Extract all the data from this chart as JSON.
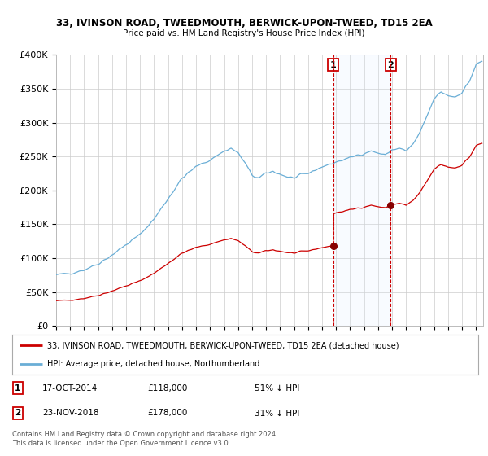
{
  "title1": "33, IVINSON ROAD, TWEEDMOUTH, BERWICK-UPON-TWEED, TD15 2EA",
  "title2": "Price paid vs. HM Land Registry's House Price Index (HPI)",
  "ylabel_ticks": [
    "£0",
    "£50K",
    "£100K",
    "£150K",
    "£200K",
    "£250K",
    "£300K",
    "£350K",
    "£400K"
  ],
  "ylim": [
    0,
    400000
  ],
  "xlim_start": 1995.0,
  "xlim_end": 2025.5,
  "legend_line1": "33, IVINSON ROAD, TWEEDMOUTH, BERWICK-UPON-TWEED, TD15 2EA (detached house)",
  "legend_line2": "HPI: Average price, detached house, Northumberland",
  "annotation1_label": "1",
  "annotation1_date": "17-OCT-2014",
  "annotation1_price": "£118,000",
  "annotation1_hpi": "51% ↓ HPI",
  "annotation2_label": "2",
  "annotation2_date": "23-NOV-2018",
  "annotation2_price": "£178,000",
  "annotation2_hpi": "31% ↓ HPI",
  "footer": "Contains HM Land Registry data © Crown copyright and database right 2024.\nThis data is licensed under the Open Government Licence v3.0.",
  "hpi_color": "#6aaed6",
  "sale_color": "#cc0000",
  "marker_color": "#880000",
  "vline_color": "#cc0000",
  "shade_color": "#ddeeff",
  "annotation_box_color": "#cc0000",
  "grid_color": "#cccccc",
  "background_color": "#ffffff",
  "sale1_year": 2014.789,
  "sale1_val": 118000,
  "sale2_year": 2018.9,
  "sale2_val": 178000,
  "hpi_start_year": 1995.0,
  "hpi_month_step": 0.08333
}
